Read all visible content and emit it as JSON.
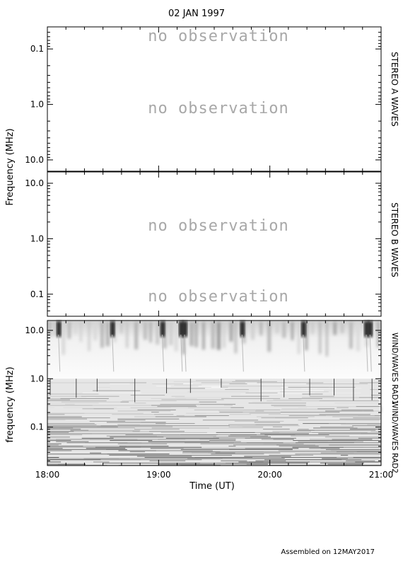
{
  "title": "02 JAN 1997",
  "footer": "Assembled on 12MAY2017",
  "ylabels": {
    "top_left": "Frequency (MHz)",
    "bottom_left": "frequency (MHz)"
  },
  "xlabel": "Time (UT)",
  "no_obs": "no observation",
  "chart_data": [
    {
      "type": "heatmap",
      "panel": "stereo-a",
      "right_label": "STEREO A WAVES",
      "yscale": "log",
      "yaxis": "inverted",
      "ylim": [
        0.04,
        16.0
      ],
      "yticks": [
        {
          "v": 0.1,
          "t": "0.1"
        },
        {
          "v": 1.0,
          "t": "1.0"
        },
        {
          "v": 10.0,
          "t": "10.0"
        }
      ],
      "annotations": [
        {
          "text": "no observation",
          "freq": 0.06
        },
        {
          "text": "no observation",
          "freq": 1.0
        }
      ],
      "data": "none"
    },
    {
      "type": "heatmap",
      "panel": "stereo-b",
      "right_label": "STEREO B WAVES",
      "yscale": "log",
      "yaxis": "normal",
      "ylim": [
        0.04,
        16.0
      ],
      "yticks": [
        {
          "v": 10.0,
          "t": "10.0"
        },
        {
          "v": 1.0,
          "t": "1.0"
        },
        {
          "v": 0.1,
          "t": "0.1"
        }
      ],
      "annotations": [
        {
          "text": "no observation",
          "freq": 1.0
        },
        {
          "text": "no observation",
          "freq": 0.07
        }
      ],
      "data": "none"
    },
    {
      "type": "heatmap",
      "panel": "wind",
      "right_labels": [
        "WIND/WAVES RAD1",
        "WIND/WAVES RAD2"
      ],
      "yscale": "log",
      "yaxis": "normal",
      "ylim": [
        0.016,
        16.0
      ],
      "yticks": [
        {
          "v": 0.1,
          "t": "0.1"
        },
        {
          "v": 1.0,
          "t": "1.0"
        },
        {
          "v": 10.0,
          "t": "10.0"
        }
      ],
      "x": [
        "18:00",
        "19:00",
        "20:00",
        "21:00"
      ],
      "xlim": [
        "18:00",
        "21:00"
      ],
      "type_iii_bursts": [
        "18:06",
        "18:35",
        "19:02",
        "19:12",
        "19:14",
        "19:45",
        "20:18",
        "20:52",
        "20:54"
      ],
      "colormap": "white-to-black"
    }
  ],
  "ticks_hours": [
    "18:00",
    "19:00",
    "20:00",
    "21:00"
  ]
}
